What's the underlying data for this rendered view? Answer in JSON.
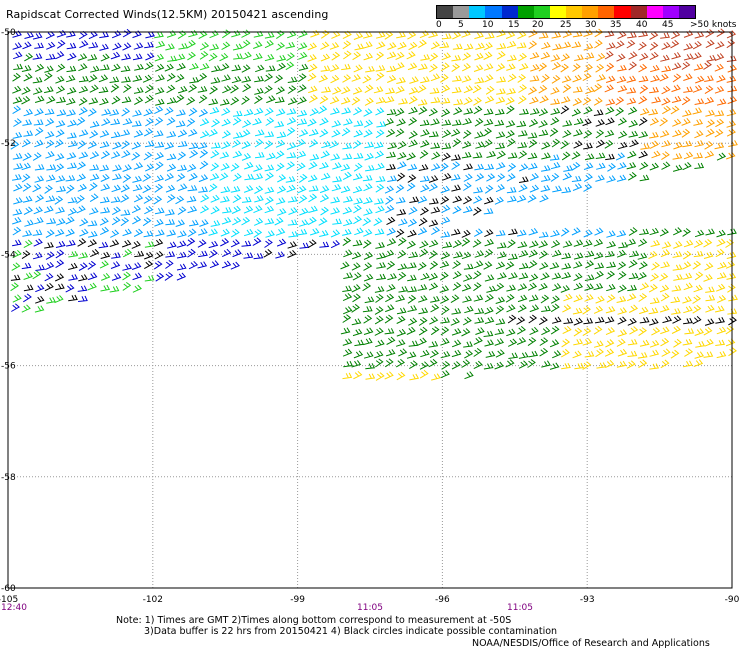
{
  "title": "Rapidscat Corrected Winds(12.5KM) 20150421 ascending",
  "legend": {
    "colors": [
      "#444444",
      "#9a9a9a",
      "#00c8ff",
      "#0078ff",
      "#0028d0",
      "#00a000",
      "#20d020",
      "#ffff00",
      "#ffc800",
      "#ffa000",
      "#ff6400",
      "#ff0000",
      "#a02828",
      "#ff00ff",
      "#a000ff",
      "#5000a0"
    ],
    "labels": [
      "0",
      "5",
      "10",
      "15",
      "20",
      "25",
      "30",
      "35",
      "40",
      "45",
      ">50 knots"
    ]
  },
  "axes": {
    "lat_labels": [
      "-50",
      "-52",
      "-54",
      "-56",
      "-58",
      "-60"
    ],
    "lon_labels": [
      "-105",
      "-102",
      "-99",
      "-96",
      "-93",
      "-90"
    ],
    "time_labels": [
      "12:40",
      "11:05",
      "11:05"
    ]
  },
  "notes": [
    "Note: 1) Times are GMT 2)Times along bottom correspond to measurement at -50S",
    "3)Data buffer is 22 hrs from 20150421 4) Black circles indicate possible contamination"
  ],
  "credit": "NOAA/NESDIS/Office of Research and Applications",
  "colors": {
    "grid": "#9a9a9a",
    "speed_black": "#000000",
    "speed_blue": "#0000d0",
    "speed_lightblue": "#00a0ff",
    "speed_cyan": "#00e0ff",
    "speed_green": "#008000",
    "speed_lightgreen": "#20d020",
    "speed_yellow": "#ffd800",
    "speed_orange": "#ffa000",
    "speed_darkorange": "#ff6a00",
    "speed_brown": "#c04020",
    "speed_magenta": "#ff20a0"
  }
}
